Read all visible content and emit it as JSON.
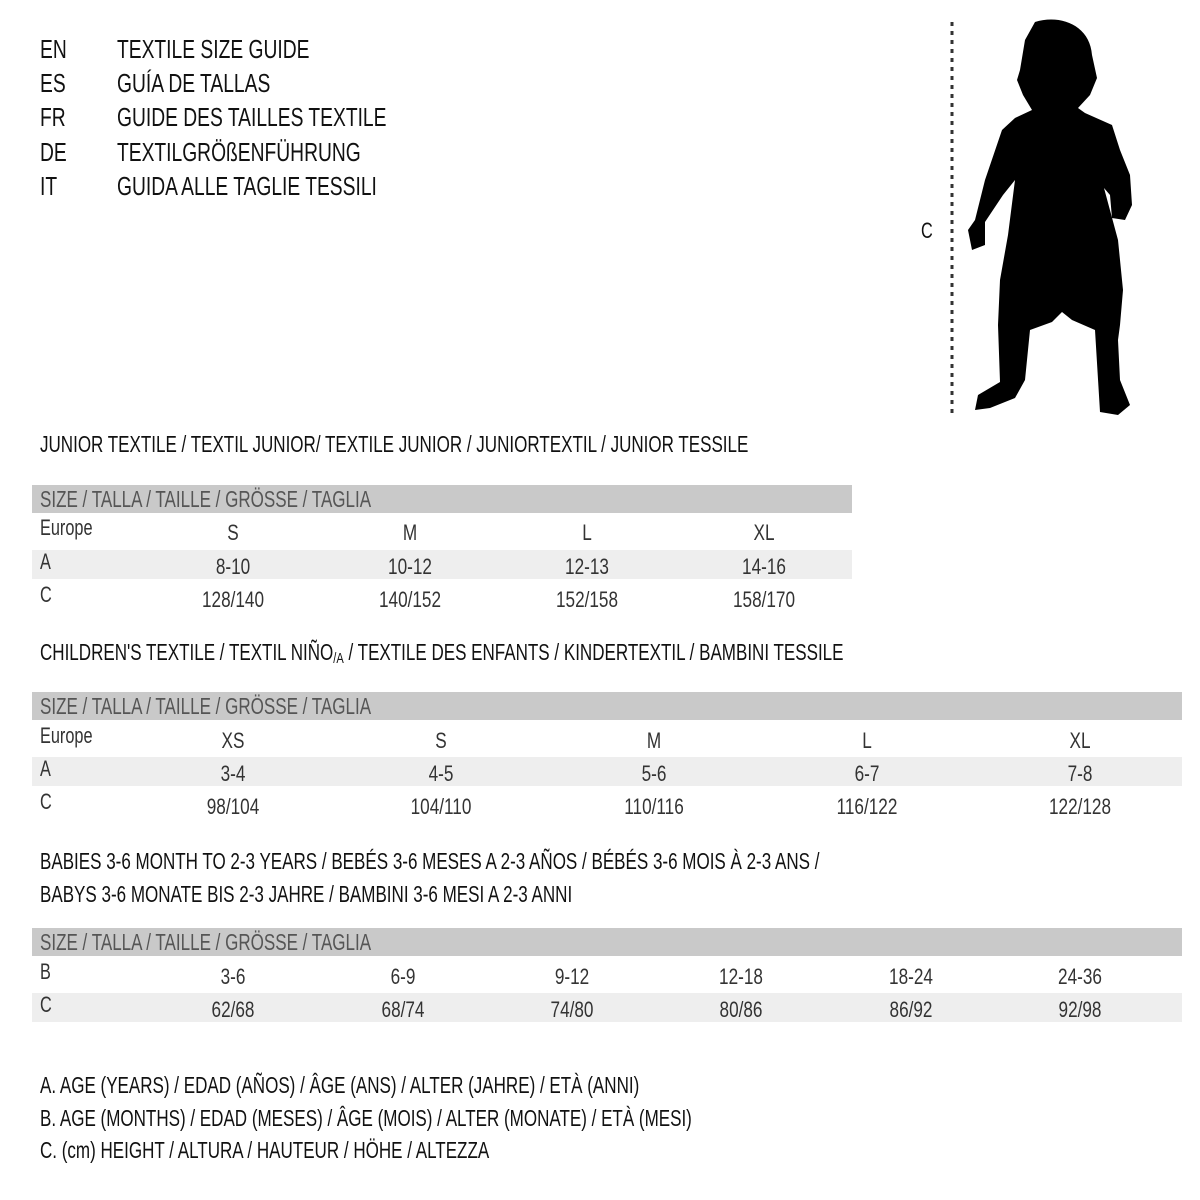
{
  "languages": [
    {
      "code": "EN",
      "title": "TEXTILE SIZE GUIDE"
    },
    {
      "code": "ES",
      "title": "GUÍA DE TALLAS"
    },
    {
      "code": "FR",
      "title": "GUIDE DES TAILLES TEXTILE"
    },
    {
      "code": "DE",
      "title": "TEXTILGRÖßENFÜHRUNG"
    },
    {
      "code": "IT",
      "title": "GUIDA ALLE TAGLIE TESSILI"
    }
  ],
  "figure": {
    "measure_label": "C",
    "icon": "child-silhouette"
  },
  "colors": {
    "header_band": "#c9c9c9",
    "row_band": "#eeeeee"
  },
  "junior": {
    "title": "JUNIOR TEXTILE / TEXTIL JUNIOR/ TEXTILE JUNIOR / JUNIORTEXTIL / JUNIOR TESSILE",
    "header": "SIZE / TALLA / TAILLE / GRÖSSE / TAGLIA",
    "rows": [
      {
        "label": "Europe",
        "values": [
          "S",
          "M",
          "L",
          "XL"
        ]
      },
      {
        "label": "A",
        "values": [
          "8-10",
          "10-12",
          "12-13",
          "14-16"
        ]
      },
      {
        "label": "C",
        "values": [
          "128/140",
          "140/152",
          "152/158",
          "158/170"
        ]
      }
    ]
  },
  "children": {
    "title_before": "CHILDREN'S TEXTILE / TEXTIL NIÑO",
    "title_sub": "/A",
    "title_after": " / TEXTILE DES ENFANTS / KINDERTEXTIL / BAMBINI TESSILE",
    "header": "SIZE / TALLA / TAILLE / GRÖSSE / TAGLIA",
    "rows": [
      {
        "label": "Europe",
        "values": [
          "XS",
          "S",
          "M",
          "L",
          "XL"
        ]
      },
      {
        "label": "A",
        "values": [
          "3-4",
          "4-5",
          "5-6",
          "6-7",
          "7-8"
        ]
      },
      {
        "label": "C",
        "values": [
          "98/104",
          "104/110",
          "110/116",
          "116/122",
          "122/128"
        ]
      }
    ]
  },
  "babies": {
    "title_line1": "BABIES 3-6 MONTH TO 2-3 YEARS / BEBÉS 3-6 MESES A 2-3 AÑOS / BÉBÉS 3-6 MOIS À 2-3 ANS /",
    "title_line2": "BABYS 3-6 MONATE BIS 2-3 JAHRE / BAMBINI 3-6 MESI A 2-3 ANNI",
    "header": "SIZE / TALLA / TAILLE / GRÖSSE / TAGLIA",
    "rows": [
      {
        "label": "B",
        "values": [
          "3-6",
          "6-9",
          "9-12",
          "12-18",
          "18-24",
          "24-36"
        ]
      },
      {
        "label": "C",
        "values": [
          "62/68",
          "68/74",
          "74/80",
          "80/86",
          "86/92",
          "92/98"
        ]
      }
    ]
  },
  "legend": [
    "A. AGE (YEARS) / EDAD (AÑOS) / ÂGE (ANS) / ALTER (JAHRE) / ETÀ (ANNI)",
    "B. AGE (MONTHS) / EDAD (MESES) / ÂGE (MOIS) / ALTER (MONATE) / ETÀ (MESI)",
    "C. (cm) HEIGHT / ALTURA / HAUTEUR / HÖHE / ALTEZZA"
  ]
}
